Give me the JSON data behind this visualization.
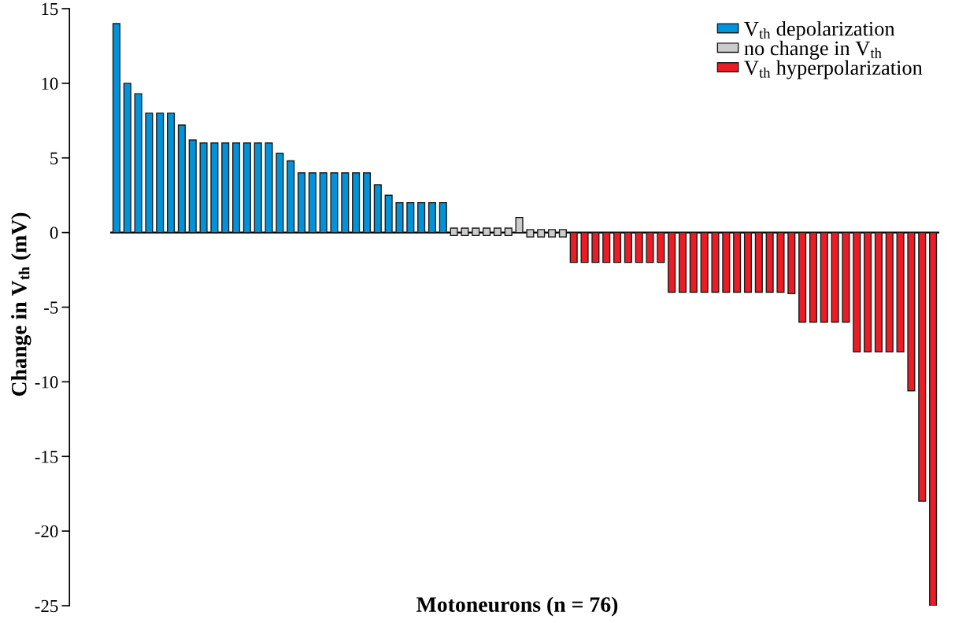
{
  "chart_data": {
    "type": "bar",
    "xlabel": "Motoneurons (n = 76)",
    "ylabel": "Change in V$_{th}$ (mV)",
    "categories": [
      null,
      null,
      null,
      null,
      null,
      null,
      null,
      null,
      null,
      null,
      null,
      null,
      null,
      null,
      null,
      null,
      null,
      null,
      null,
      null,
      null,
      null,
      null,
      null,
      null,
      null,
      null,
      null,
      null,
      null,
      null,
      null,
      null,
      null,
      null,
      null,
      null,
      null,
      null,
      null,
      null,
      null,
      null,
      null,
      null,
      null,
      null,
      null,
      null,
      null,
      null,
      null,
      null,
      null,
      null,
      null,
      null,
      null,
      null,
      null,
      null,
      null,
      null,
      null,
      null,
      null,
      null,
      null,
      null,
      null,
      null,
      null,
      null,
      null,
      null,
      null
    ],
    "series": [
      {
        "name": "V$_{th}$ depolarization",
        "color": "#0093d9",
        "values": [
          14,
          10,
          9.3,
          8,
          8,
          8,
          7.2,
          6.2,
          6,
          6,
          6,
          6,
          6,
          6,
          6,
          5.3,
          4.8,
          4,
          4,
          4,
          4,
          4,
          4,
          4,
          3.2,
          2.5,
          2,
          2,
          2,
          2,
          2,
          null,
          null,
          null,
          null,
          null,
          null,
          null,
          null,
          null,
          null,
          null,
          null,
          null,
          null,
          null,
          null,
          null,
          null,
          null,
          null,
          null,
          null,
          null,
          null,
          null,
          null,
          null,
          null,
          null,
          null,
          null,
          null,
          null,
          null,
          null,
          null,
          null,
          null,
          null,
          null,
          null,
          null,
          null,
          null,
          null
        ]
      },
      {
        "name": "no change in V$_{th}$",
        "color": "#cccccc",
        "values": [
          null,
          null,
          null,
          null,
          null,
          null,
          null,
          null,
          null,
          null,
          null,
          null,
          null,
          null,
          null,
          null,
          null,
          null,
          null,
          null,
          null,
          null,
          null,
          null,
          null,
          null,
          null,
          null,
          null,
          null,
          null,
          0.5,
          0.5,
          0.5,
          0.5,
          0.5,
          0.5,
          1,
          0.5,
          0.5,
          0.5,
          0.5,
          null,
          null,
          null,
          null,
          null,
          null,
          null,
          null,
          null,
          null,
          null,
          null,
          null,
          null,
          null,
          null,
          null,
          null,
          null,
          null,
          null,
          null,
          null,
          null,
          null,
          null,
          null,
          null,
          null,
          null,
          null,
          null,
          null,
          null
        ],
        "base": [
          null,
          null,
          null,
          null,
          null,
          null,
          null,
          null,
          null,
          null,
          null,
          null,
          null,
          null,
          null,
          null,
          null,
          null,
          null,
          null,
          null,
          null,
          null,
          null,
          null,
          null,
          null,
          null,
          null,
          null,
          null,
          -0.2,
          -0.2,
          -0.2,
          -0.2,
          -0.2,
          -0.2,
          0,
          -0.3,
          -0.3,
          -0.3,
          -0.3,
          null,
          null,
          null,
          null,
          null,
          null,
          null,
          null,
          null,
          null,
          null,
          null,
          null,
          null,
          null,
          null,
          null,
          null,
          null,
          null,
          null,
          null,
          null,
          null,
          null,
          null,
          null,
          null,
          null,
          null,
          null,
          null,
          null,
          null
        ]
      },
      {
        "name": "V$_{th}$ hyperpolarization",
        "color": "#ed1c24",
        "values": [
          null,
          null,
          null,
          null,
          null,
          null,
          null,
          null,
          null,
          null,
          null,
          null,
          null,
          null,
          null,
          null,
          null,
          null,
          null,
          null,
          null,
          null,
          null,
          null,
          null,
          null,
          null,
          null,
          null,
          null,
          null,
          null,
          null,
          null,
          null,
          null,
          null,
          null,
          null,
          null,
          null,
          null,
          -2,
          -2,
          -2,
          -2,
          -2,
          -2,
          -2,
          -2,
          -2,
          -4,
          -4,
          -4,
          -4,
          -4,
          -4,
          -4,
          -4,
          -4,
          -4,
          -4,
          -4.1,
          -6,
          -6,
          -6,
          -6,
          -6,
          -8,
          -8,
          -8,
          -8,
          -8,
          -10.6,
          -18,
          -25
        ]
      }
    ],
    "ylim": [
      -25,
      15
    ],
    "yticks": [
      15,
      10,
      5,
      0,
      -5,
      -10,
      -15,
      -20,
      -25
    ],
    "legend": "top right"
  }
}
